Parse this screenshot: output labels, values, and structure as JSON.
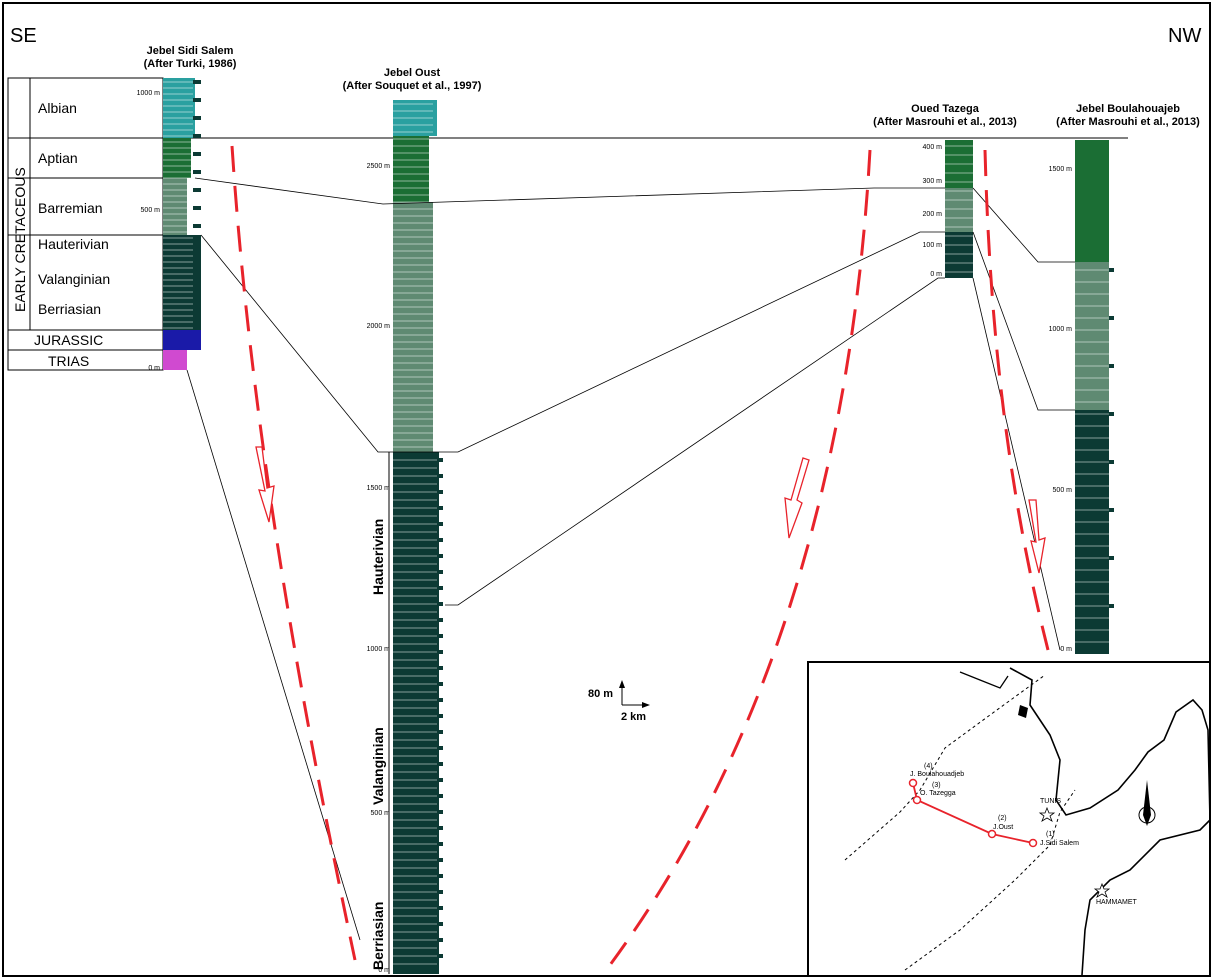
{
  "direction": {
    "left": "SE",
    "right": "NW"
  },
  "era_label": "EARLY CRETACEOUS",
  "stage_table": {
    "stages": [
      "Albian",
      "Aptian",
      "Barremian",
      "Hauterivian",
      "Valanginian",
      "Berriasian"
    ],
    "lower": [
      "JURASSIC",
      "TRIAS"
    ]
  },
  "columns": [
    {
      "id": "sidi-salem",
      "title": [
        "Jebel Sidi Salem",
        "(After Turki, 1986)"
      ],
      "ticks": [
        "1000 m",
        "500 m",
        "0 m"
      ]
    },
    {
      "id": "oust",
      "title": [
        "Jebel Oust",
        "(After Souquet et al., 1997)"
      ],
      "ticks": [
        "2500 m",
        "2000 m",
        "1500 m",
        "1000 m",
        "500 m",
        "0 m"
      ]
    },
    {
      "id": "tazega",
      "title": [
        "Oued Tazega",
        "(After Masrouhi et al., 2013)"
      ],
      "ticks": [
        "400 m",
        "300 m",
        "200 m",
        "100 m",
        "0 m"
      ]
    },
    {
      "id": "boulahouajeb",
      "title": [
        "Jebel Boulahouajeb",
        "(After Masrouhi et al., 2013)"
      ],
      "ticks": [
        "1500 m",
        "1000 m",
        "500 m",
        "0 m"
      ]
    }
  ],
  "oust_stage_labels": [
    "Hauterivian",
    "Valanginian",
    "Berriasian"
  ],
  "scale_bar": {
    "vertical": "80 m",
    "horizontal": "2 km"
  },
  "map": {
    "localities": [
      {
        "number": "(4)",
        "name": "J. Boulahouadjeb"
      },
      {
        "number": "(3)",
        "name": "O. Tazegga"
      },
      {
        "number": "(2)",
        "name": "J.Oust"
      },
      {
        "number": "(1)",
        "name": "J.Sidi Salem"
      }
    ],
    "cities": [
      "TUNIS",
      "HAMMAMET"
    ],
    "north_label": "N"
  },
  "colors": {
    "dark": "#0c3a34",
    "mid": "#5f8a72",
    "green": "#1b6e34",
    "teal": "#2aa0a0",
    "jurassic": "#1a1aa8",
    "trias": "#d04ad0",
    "fault": "#e8232b"
  }
}
